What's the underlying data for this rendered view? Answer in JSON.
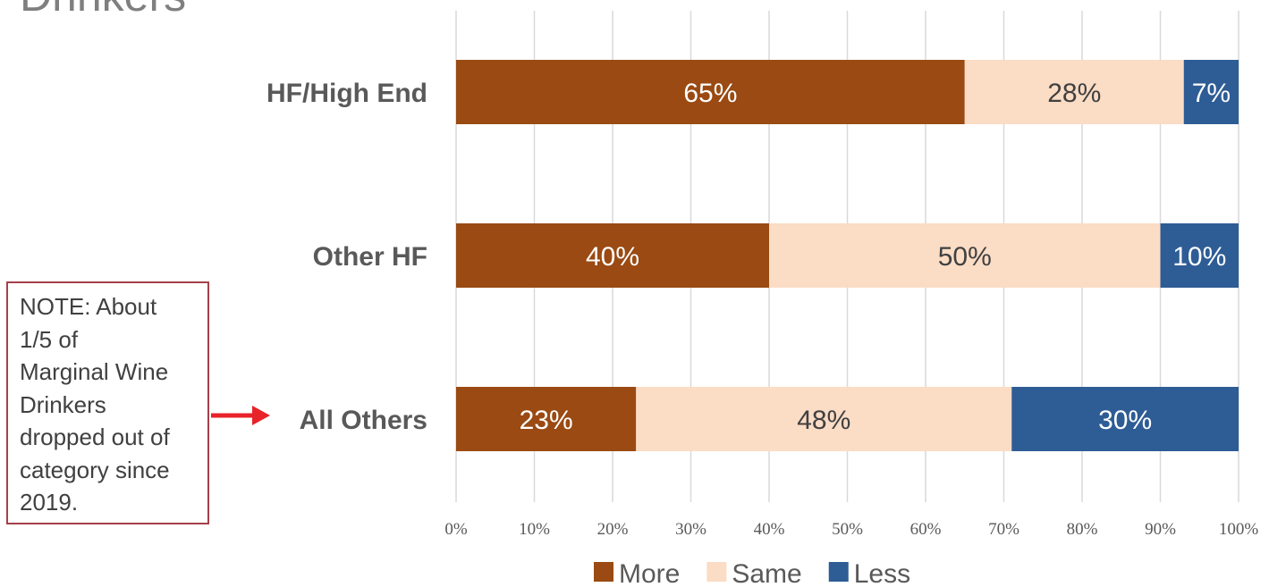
{
  "page": {
    "title": "Drinkers"
  },
  "note": {
    "text": "NOTE: About\n1/5  of\nMarginal Wine\nDrinkers\ndropped out of\ncategory since\n2019."
  },
  "colors": {
    "more": "#9a4a12",
    "same": "#fbdcc5",
    "less": "#2e5c95",
    "grid": "#d9d9d9",
    "arrow": "#e8232a",
    "note_border": "#a5404a",
    "label_light": "#ffffff",
    "label_dark": "#404040"
  },
  "chart_data": {
    "type": "bar",
    "orientation": "horizontal",
    "stacked": true,
    "categories": [
      "HF/High End",
      "Other HF",
      "All Others"
    ],
    "series": [
      {
        "name": "More",
        "values": [
          65,
          40,
          23
        ],
        "labels": [
          "65%",
          "40%",
          "23%"
        ]
      },
      {
        "name": "Same",
        "values": [
          28,
          50,
          48
        ],
        "labels": [
          "28%",
          "50%",
          "48%"
        ]
      },
      {
        "name": "Less",
        "values": [
          7,
          10,
          30
        ],
        "labels": [
          "7%",
          "10%",
          "30%"
        ]
      }
    ],
    "x_ticks": [
      "0%",
      "10%",
      "20%",
      "30%",
      "40%",
      "50%",
      "60%",
      "70%",
      "80%",
      "90%",
      "100%"
    ],
    "xlim": [
      0,
      100
    ],
    "grid": true,
    "legend_position": "bottom"
  }
}
